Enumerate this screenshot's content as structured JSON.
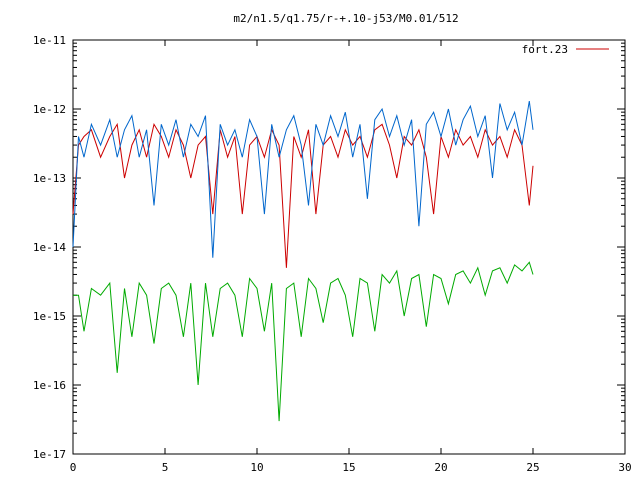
{
  "chart_data": {
    "type": "line",
    "title": "m2/n1.5/q1.75/r-+.10-j53/M0.01/512",
    "xlabel": "",
    "ylabel": "",
    "xlim": [
      0,
      30
    ],
    "ylim": [
      1e-17,
      1e-11
    ],
    "y_scale": "log",
    "grid": false,
    "legend_position": "top-right",
    "x_ticks": [
      "0",
      "5",
      "10",
      "15",
      "20",
      "25",
      "30"
    ],
    "y_ticks": [
      "1e-11",
      "1e-12",
      "1e-13",
      "1e-14",
      "1e-15",
      "1e-16",
      "1e-17"
    ],
    "series": [
      {
        "name": "fort.23",
        "color": "#cc0000",
        "x": [
          0.0,
          0.3,
          0.6,
          1.0,
          1.5,
          2.0,
          2.4,
          2.8,
          3.2,
          3.6,
          4.0,
          4.4,
          4.8,
          5.2,
          5.6,
          6.0,
          6.4,
          6.8,
          7.2,
          7.6,
          8.0,
          8.4,
          8.8,
          9.2,
          9.6,
          10.0,
          10.4,
          10.8,
          11.2,
          11.6,
          12.0,
          12.4,
          12.8,
          13.2,
          13.6,
          14.0,
          14.4,
          14.8,
          15.2,
          15.6,
          16.0,
          16.4,
          16.8,
          17.2,
          17.6,
          18.0,
          18.4,
          18.8,
          19.2,
          19.6,
          20.0,
          20.4,
          20.8,
          21.2,
          21.6,
          22.0,
          22.4,
          22.8,
          23.2,
          23.6,
          24.0,
          24.4,
          24.8,
          25.0
        ],
        "y": [
          3e-14,
          3e-13,
          4e-13,
          5e-13,
          2e-13,
          4e-13,
          6e-13,
          1e-13,
          3e-13,
          5e-13,
          2e-13,
          6e-13,
          4e-13,
          2e-13,
          5e-13,
          3e-13,
          1e-13,
          3e-13,
          4e-13,
          3e-14,
          5e-13,
          2e-13,
          4e-13,
          3e-14,
          3e-13,
          4e-13,
          2e-13,
          5e-13,
          3e-13,
          5e-15,
          4e-13,
          2e-13,
          5e-13,
          3e-14,
          3e-13,
          4e-13,
          2e-13,
          5e-13,
          3e-13,
          4e-13,
          2e-13,
          5e-13,
          6e-13,
          3e-13,
          1e-13,
          4e-13,
          3e-13,
          5e-13,
          2e-13,
          3e-14,
          4e-13,
          2e-13,
          5e-13,
          3e-13,
          4e-13,
          2e-13,
          5e-13,
          3e-13,
          4e-13,
          2e-13,
          5e-13,
          3e-13,
          4e-14,
          1.5e-13
        ]
      },
      {
        "name": "",
        "color": "#0066cc",
        "x": [
          0.0,
          0.3,
          0.6,
          1.0,
          1.5,
          2.0,
          2.4,
          2.8,
          3.2,
          3.6,
          4.0,
          4.4,
          4.8,
          5.2,
          5.6,
          6.0,
          6.4,
          6.8,
          7.2,
          7.6,
          8.0,
          8.4,
          8.8,
          9.2,
          9.6,
          10.0,
          10.4,
          10.8,
          11.2,
          11.6,
          12.0,
          12.4,
          12.8,
          13.2,
          13.6,
          14.0,
          14.4,
          14.8,
          15.2,
          15.6,
          16.0,
          16.4,
          16.8,
          17.2,
          17.6,
          18.0,
          18.4,
          18.8,
          19.2,
          19.6,
          20.0,
          20.4,
          20.8,
          21.2,
          21.6,
          22.0,
          22.4,
          22.8,
          23.2,
          23.6,
          24.0,
          24.4,
          24.8,
          25.0
        ],
        "y": [
          1e-14,
          4e-13,
          2e-13,
          6e-13,
          3e-13,
          7e-13,
          2e-13,
          5e-13,
          8e-13,
          2e-13,
          5e-13,
          4e-14,
          6e-13,
          3e-13,
          7e-13,
          2e-13,
          6e-13,
          4e-13,
          8e-13,
          7e-15,
          6e-13,
          3e-13,
          5e-13,
          2e-13,
          7e-13,
          4e-13,
          3e-14,
          6e-13,
          2e-13,
          5e-13,
          8e-13,
          3e-13,
          4e-14,
          6e-13,
          3e-13,
          8e-13,
          4e-13,
          9e-13,
          2e-13,
          6e-13,
          5e-14,
          7e-13,
          1e-12,
          4e-13,
          8e-13,
          3e-13,
          7e-13,
          2e-14,
          6e-13,
          9e-13,
          4e-13,
          1e-12,
          3e-13,
          7e-13,
          1.1e-12,
          4e-13,
          8e-13,
          1e-13,
          1.2e-12,
          5e-13,
          9e-13,
          3e-13,
          1.3e-12,
          5e-13
        ]
      },
      {
        "name": "",
        "color": "#00aa00",
        "x": [
          0.0,
          0.3,
          0.6,
          1.0,
          1.5,
          2.0,
          2.4,
          2.8,
          3.2,
          3.6,
          4.0,
          4.4,
          4.8,
          5.2,
          5.6,
          6.0,
          6.4,
          6.8,
          7.2,
          7.6,
          8.0,
          8.4,
          8.8,
          9.2,
          9.6,
          10.0,
          10.4,
          10.8,
          11.2,
          11.6,
          12.0,
          12.4,
          12.8,
          13.2,
          13.6,
          14.0,
          14.4,
          14.8,
          15.2,
          15.6,
          16.0,
          16.4,
          16.8,
          17.2,
          17.6,
          18.0,
          18.4,
          18.8,
          19.2,
          19.6,
          20.0,
          20.4,
          20.8,
          21.2,
          21.6,
          22.0,
          22.4,
          22.8,
          23.2,
          23.6,
          24.0,
          24.4,
          24.8,
          25.0
        ],
        "y": [
          2e-15,
          2e-15,
          6e-16,
          2.5e-15,
          2e-15,
          3e-15,
          1.5e-16,
          2.5e-15,
          5e-16,
          3e-15,
          2e-15,
          4e-16,
          2.5e-15,
          3e-15,
          2e-15,
          5e-16,
          3e-15,
          1e-16,
          3e-15,
          5e-16,
          2.5e-15,
          3e-15,
          2e-15,
          5e-16,
          3.5e-15,
          2.5e-15,
          6e-16,
          3e-15,
          3e-17,
          2.5e-15,
          3e-15,
          5e-16,
          3.5e-15,
          2.5e-15,
          8e-16,
          3e-15,
          3.5e-15,
          2e-15,
          5e-16,
          3.5e-15,
          3e-15,
          6e-16,
          4e-15,
          3e-15,
          4.5e-15,
          1e-15,
          3.5e-15,
          4e-15,
          7e-16,
          4e-15,
          3.5e-15,
          1.5e-15,
          4e-15,
          4.5e-15,
          3e-15,
          5e-15,
          2e-15,
          4.5e-15,
          5e-15,
          3e-15,
          5.5e-15,
          4.5e-15,
          6e-15,
          4e-15
        ]
      }
    ]
  }
}
